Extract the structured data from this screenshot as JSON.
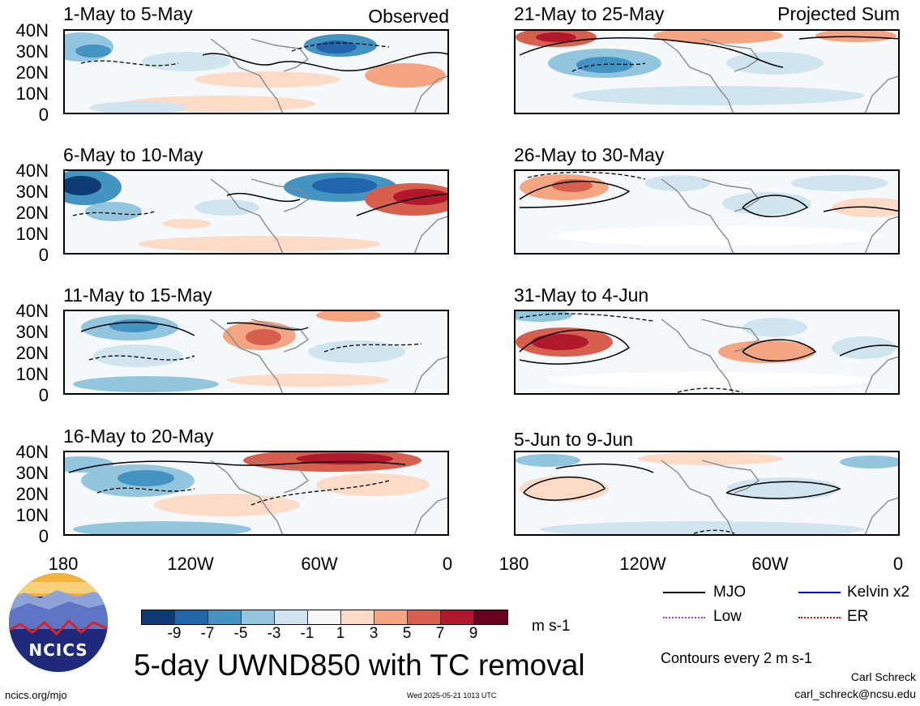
{
  "figure": {
    "title": "5-day UWND850 with TC removal",
    "units": "m s-1",
    "contour_note": "Contours every 2 m s-1",
    "author": "Carl Schreck",
    "email": "carl_schreck@ncsu.edu",
    "website": "ncics.org/mjo",
    "timestamp": "Wed 2025-05-21 1013 UTC",
    "logo_text": "NCICS"
  },
  "left_column": {
    "tag": "Observed",
    "panels": [
      "1-May to 5-May",
      "6-May to 10-May",
      "11-May to 15-May",
      "16-May to 20-May"
    ]
  },
  "right_column": {
    "tag": "Projected Sum",
    "panels": [
      "21-May to 25-May",
      "26-May to 30-May",
      "31-May to 4-Jun",
      "5-Jun to 9-Jun"
    ]
  },
  "axes": {
    "lat_labels": [
      "40N",
      "30N",
      "20N",
      "10N",
      "0"
    ],
    "lon_labels": [
      "180",
      "120W",
      "60W",
      "0"
    ]
  },
  "colorbar": {
    "labels": [
      "-9",
      "-7",
      "-5",
      "-3",
      "-1",
      "1",
      "3",
      "5",
      "7",
      "9"
    ],
    "colors": [
      "#0b3a75",
      "#2166ac",
      "#4393c3",
      "#92c5de",
      "#d1e5f0",
      "#f7f7f7",
      "#fddbc7",
      "#f4a582",
      "#d6604d",
      "#b2182b",
      "#67001f"
    ]
  },
  "legend": [
    {
      "label": "MJO",
      "color": "#000000"
    },
    {
      "label": "Kelvin x2",
      "color": "#0000cc"
    },
    {
      "label": "Low",
      "color": "#9933ff"
    },
    {
      "label": "ER",
      "color": "#ee0000"
    }
  ]
}
